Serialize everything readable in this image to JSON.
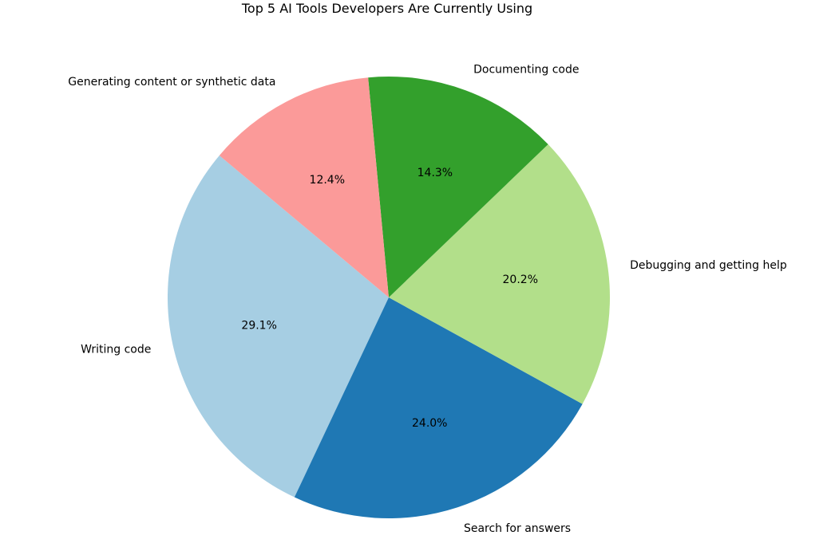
{
  "chart_data": {
    "type": "pie",
    "title": "Top 5 AI Tools Developers Are Currently Using",
    "start_angle_deg": 140,
    "direction": "counterclockwise",
    "slices": [
      {
        "label": "Writing code",
        "value": 29.1,
        "pct_label": "29.1%",
        "color": "#a6cee3"
      },
      {
        "label": "Search for answers",
        "value": 24.0,
        "pct_label": "24.0%",
        "color": "#1f78b4"
      },
      {
        "label": "Debugging and getting help",
        "value": 20.2,
        "pct_label": "20.2%",
        "color": "#b2df8a"
      },
      {
        "label": "Documenting code",
        "value": 14.3,
        "pct_label": "14.3%",
        "color": "#33a02c"
      },
      {
        "label": "Generating content or synthetic data",
        "value": 12.4,
        "pct_label": "12.4%",
        "color": "#fb9a99"
      }
    ]
  }
}
